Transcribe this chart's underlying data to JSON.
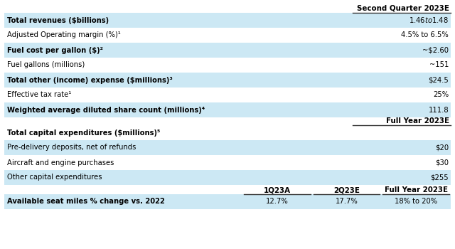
{
  "bg_color": "#ffffff",
  "cell_bg_light": "#cce8f4",
  "cell_bg_white": "#ffffff",
  "section1_header": "Second Quarter 2023E",
  "section1_rows": [
    [
      "Total revenues ($billions)",
      "$1.46 to $1.48",
      true
    ],
    [
      "Adjusted Operating margin (%)¹",
      "4.5% to 6.5%",
      false
    ],
    [
      "Fuel cost per gallon ($)²",
      "~$2.60",
      true
    ],
    [
      "Fuel gallons (millions)",
      "~151",
      false
    ],
    [
      "Total other (income) expense ($millions)³",
      "$24.5",
      true
    ],
    [
      "Effective tax rate¹",
      "25%",
      false
    ],
    [
      "Weighted average diluted share count (millions)⁴",
      "111.8",
      true
    ]
  ],
  "section2_header": "Full Year 2023E",
  "section2_header_label": "Total capital expenditures ($millions)⁵",
  "section2_rows": [
    [
      "Pre-delivery deposits, net of refunds",
      "$20",
      true
    ],
    [
      "Aircraft and engine purchases",
      "$30",
      false
    ],
    [
      "Other capital expenditures",
      "$255",
      true
    ]
  ],
  "section3_col_headers": [
    "1Q23A",
    "2Q23E",
    "Full Year 2023E"
  ],
  "section3_row_label": "Available seat miles % change vs. 2022",
  "section3_row_values": [
    "12.7%",
    "17.7%",
    "18% to 20%"
  ]
}
